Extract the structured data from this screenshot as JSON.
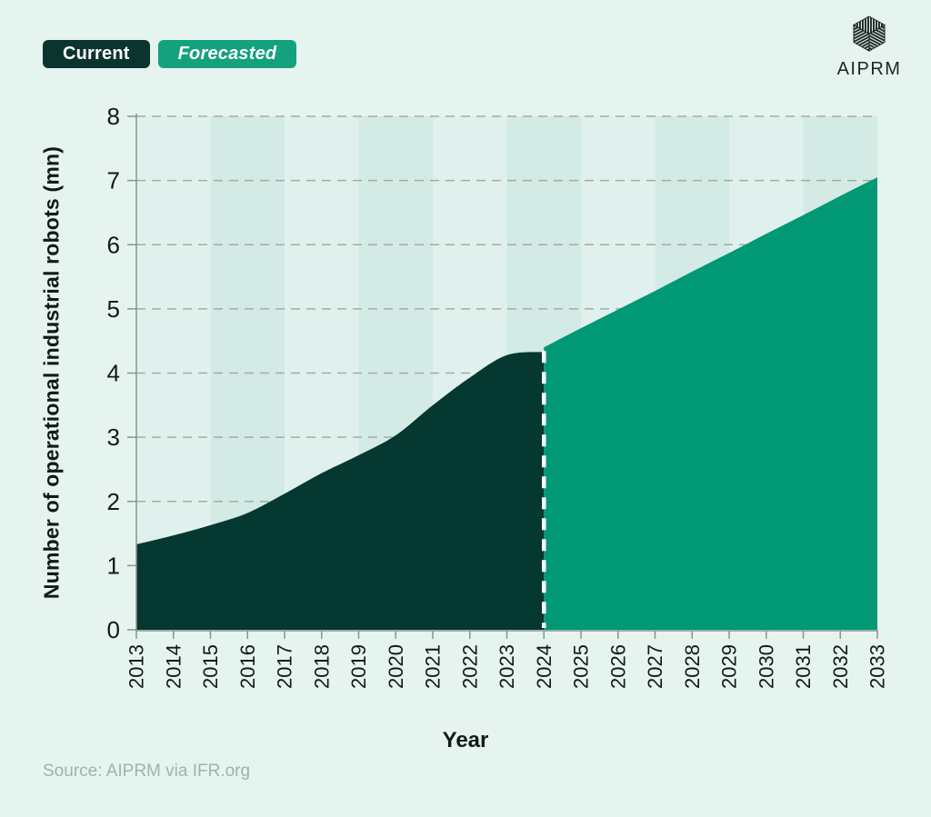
{
  "colors": {
    "page_bg": "#e6f4f0",
    "plot_bg": "#e0f1ed",
    "plot_band": "#d3eae5",
    "current": "#043830",
    "forecast": "#009875",
    "legend_current_bg": "#0b342e",
    "legend_forecast_bg": "#14a17d",
    "gridline": "#9fada9",
    "axis": "#87938f",
    "tick_text": "#0e1b18",
    "divider": "#ffffff",
    "source_text": "#9db3ae",
    "logo": "#1d2623"
  },
  "legend": {
    "current_label": "Current",
    "forecasted_label": "Forecasted"
  },
  "branding": {
    "logo_text": "AIPRM"
  },
  "chart_data": {
    "type": "area",
    "title": "",
    "xlabel": "Year",
    "ylabel": "Number of operational industrial robots (mn)",
    "xlim": [
      2013,
      2033
    ],
    "ylim": [
      0,
      8
    ],
    "y_ticks": [
      0,
      1,
      2,
      3,
      4,
      5,
      6,
      7,
      8
    ],
    "x_ticks": [
      2013,
      2014,
      2015,
      2016,
      2017,
      2018,
      2019,
      2020,
      2021,
      2022,
      2023,
      2024,
      2025,
      2026,
      2027,
      2028,
      2029,
      2030,
      2031,
      2032,
      2033
    ],
    "grid": "horizontal-dashed",
    "legend_position": "top-left",
    "divider_year": 2024,
    "background_bands": [
      [
        2015,
        2017
      ],
      [
        2019,
        2021
      ],
      [
        2023,
        2025
      ],
      [
        2027,
        2029
      ],
      [
        2031,
        2033
      ]
    ],
    "series": [
      {
        "name": "Current",
        "x": [
          2013,
          2014,
          2015,
          2016,
          2017,
          2018,
          2019,
          2020,
          2021,
          2022,
          2023,
          2024
        ],
        "values": [
          1.33,
          1.47,
          1.63,
          1.82,
          2.12,
          2.44,
          2.72,
          3.03,
          3.5,
          3.93,
          4.28,
          4.33
        ]
      },
      {
        "name": "Forecasted",
        "x": [
          2024,
          2025,
          2026,
          2027,
          2028,
          2029,
          2030,
          2031,
          2032,
          2033
        ],
        "values": [
          4.4,
          4.7,
          4.99,
          5.28,
          5.58,
          5.87,
          6.17,
          6.46,
          6.76,
          7.05
        ]
      }
    ]
  },
  "source": {
    "text": "Source: AIPRM via IFR.org"
  }
}
